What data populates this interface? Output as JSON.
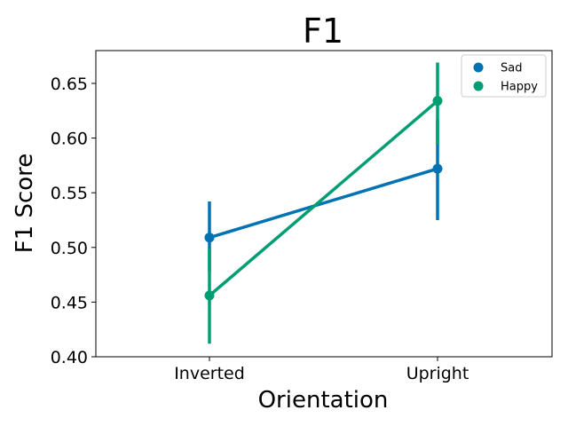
{
  "chart_data": {
    "type": "line",
    "title": "F1",
    "xlabel": "Orientation",
    "ylabel": "F1 Score",
    "categories": [
      "Inverted",
      "Upright"
    ],
    "ylim": [
      0.4,
      0.68
    ],
    "yticks": [
      0.4,
      0.45,
      0.5,
      0.55,
      0.6,
      0.65
    ],
    "ytick_labels": [
      "0.40",
      "0.45",
      "0.50",
      "0.55",
      "0.60",
      "0.65"
    ],
    "grid": false,
    "legend_position": "top-right",
    "series": [
      {
        "name": "Sad",
        "color": "#0173b2",
        "values": [
          0.509,
          0.572
        ],
        "ci_low": [
          0.478,
          0.525
        ],
        "ci_high": [
          0.542,
          0.617
        ]
      },
      {
        "name": "Happy",
        "color": "#029e73",
        "values": [
          0.456,
          0.634
        ],
        "ci_low": [
          0.412,
          0.594
        ],
        "ci_high": [
          0.499,
          0.669
        ]
      }
    ]
  }
}
